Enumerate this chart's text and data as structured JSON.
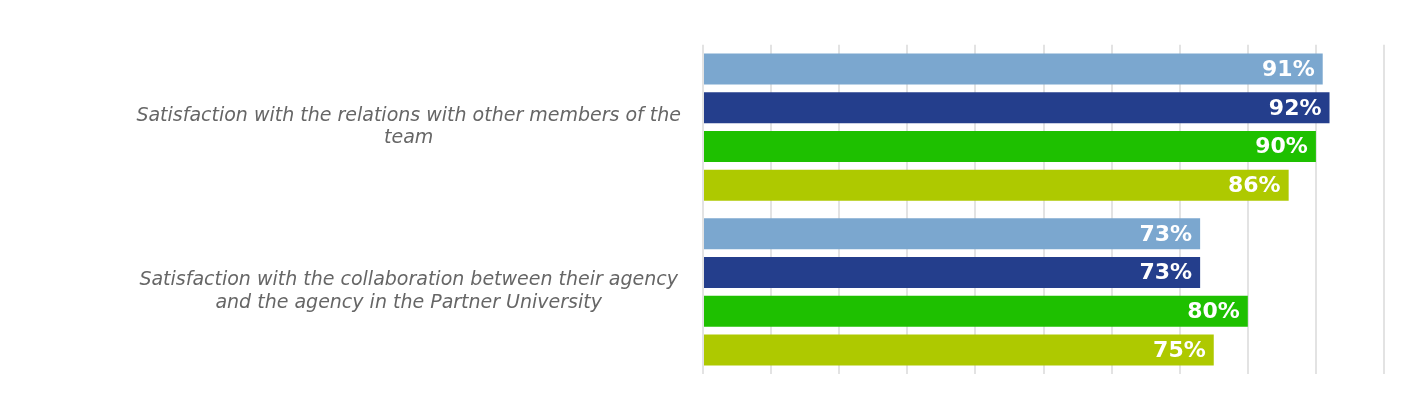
{
  "chart_data": {
    "type": "bar",
    "orientation": "horizontal",
    "categories": [
      "Satisfaction with the relations with other members of the team",
      "Satisfaction with the collaboration between their agency and the agency in the Partner University"
    ],
    "series": [
      {
        "color": "#7ba7cf",
        "values": [
          91,
          73
        ],
        "value_labels": [
          "91%",
          "73%"
        ]
      },
      {
        "color": "#243e8c",
        "values": [
          92,
          73
        ],
        "value_labels": [
          "92%",
          "73%"
        ]
      },
      {
        "color": "#1ec000",
        "values": [
          90,
          80
        ],
        "value_labels": [
          "90%",
          "80%"
        ]
      },
      {
        "color": "#aec900",
        "values": [
          86,
          75
        ],
        "value_labels": [
          "86%",
          "75%"
        ]
      }
    ],
    "tick_labels": "y",
    "grid": "x",
    "legend": false
  }
}
